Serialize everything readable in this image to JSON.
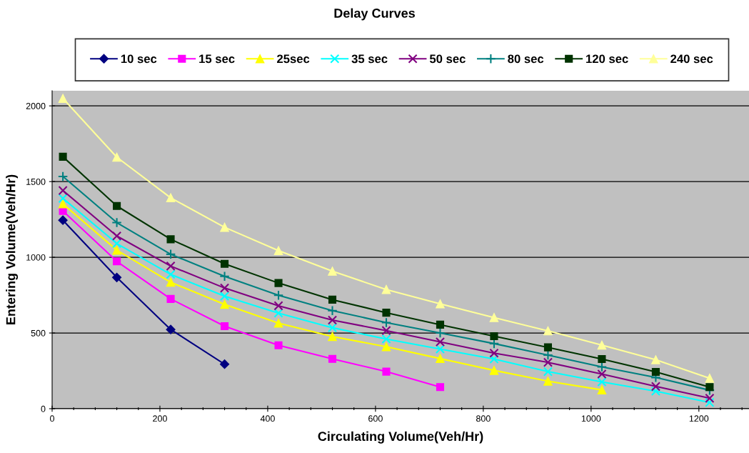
{
  "chart_data": {
    "type": "line",
    "title": "Delay Curves",
    "xlabel": "Circulating Volume(Veh/Hr)",
    "ylabel": "Entering Volume(Veh/Hr)",
    "xlim": [
      0,
      1293
    ],
    "ylim": [
      0,
      2100
    ],
    "xticks": [
      0,
      {
        "value": 40,
        "label": null
      },
      {
        "value": 80,
        "label": null
      },
      {
        "value": 120,
        "label": null
      },
      {
        "value": 160,
        "label": null
      },
      200,
      {
        "value": 240,
        "label": null
      },
      {
        "value": 280,
        "label": null
      },
      {
        "value": 320,
        "label": null
      },
      {
        "value": 360,
        "label": null
      },
      400,
      {
        "value": 440,
        "label": null
      },
      {
        "value": 480,
        "label": null
      },
      {
        "value": 520,
        "label": null
      },
      {
        "value": 560,
        "label": null
      },
      600,
      {
        "value": 640,
        "label": null
      },
      {
        "value": 680,
        "label": null
      },
      {
        "value": 720,
        "label": null
      },
      {
        "value": 760,
        "label": null
      },
      800,
      {
        "value": 840,
        "label": null
      },
      {
        "value": 880,
        "label": null
      },
      {
        "value": 920,
        "label": null
      },
      {
        "value": 960,
        "label": null
      },
      1000,
      {
        "value": 1040,
        "label": null
      },
      {
        "value": 1080,
        "label": null
      },
      {
        "value": 1120,
        "label": null
      },
      {
        "value": 1160,
        "label": null
      },
      1200,
      {
        "value": 1240,
        "label": null
      },
      {
        "value": 1280,
        "label": null
      }
    ],
    "yticks": [
      0,
      500,
      1000,
      1500,
      2000
    ],
    "grid": "y",
    "legend": "top",
    "x": [
      20,
      120,
      220,
      320,
      420,
      520,
      620,
      720,
      820,
      920,
      1020,
      1120,
      1220
    ],
    "series": [
      {
        "name": "10 sec",
        "color": "#000080",
        "marker": "diamond",
        "x": [
          20,
          120,
          220,
          320
        ],
        "values": [
          1245,
          867,
          523,
          294
        ]
      },
      {
        "name": "15 sec",
        "color": "#ff00ff",
        "marker": "square",
        "x": [
          20,
          120,
          220,
          320,
          420,
          520,
          620,
          720
        ],
        "values": [
          1306,
          973,
          725,
          545,
          419,
          329,
          245,
          143
        ]
      },
      {
        "name": "25sec",
        "color": "#ffff00",
        "marker": "triangle",
        "x": [
          20,
          120,
          220,
          320,
          420,
          520,
          620,
          720,
          820,
          920,
          1020
        ],
        "values": [
          1353,
          1047,
          835,
          689,
          565,
          477,
          409,
          331,
          253,
          182,
          124
        ]
      },
      {
        "name": "35 sec",
        "color": "#00ffff",
        "marker": "cross",
        "values": [
          1389,
          1091,
          887,
          743,
          631,
          535,
          460,
          394,
          328,
          245,
          177,
          116,
          41
        ]
      },
      {
        "name": "50 sec",
        "color": "#800080",
        "marker": "cross",
        "values": [
          1441,
          1141,
          942,
          797,
          680,
          585,
          516,
          441,
          367,
          306,
          229,
          147,
          69
        ]
      },
      {
        "name": "80 sec",
        "color": "#008080",
        "marker": "plus",
        "values": [
          1534,
          1229,
          1020,
          874,
          749,
          648,
          569,
          500,
          430,
          354,
          276,
          206,
          122
        ]
      },
      {
        "name": "120 sec",
        "color": "#003300",
        "marker": "square",
        "values": [
          1664,
          1339,
          1119,
          957,
          830,
          720,
          634,
          555,
          479,
          405,
          328,
          243,
          143
        ]
      },
      {
        "name": "240 sec",
        "color": "#ffff99",
        "marker": "triangle",
        "values": [
          2049,
          1661,
          1393,
          1198,
          1044,
          908,
          787,
          692,
          602,
          514,
          420,
          323,
          201
        ]
      }
    ]
  }
}
